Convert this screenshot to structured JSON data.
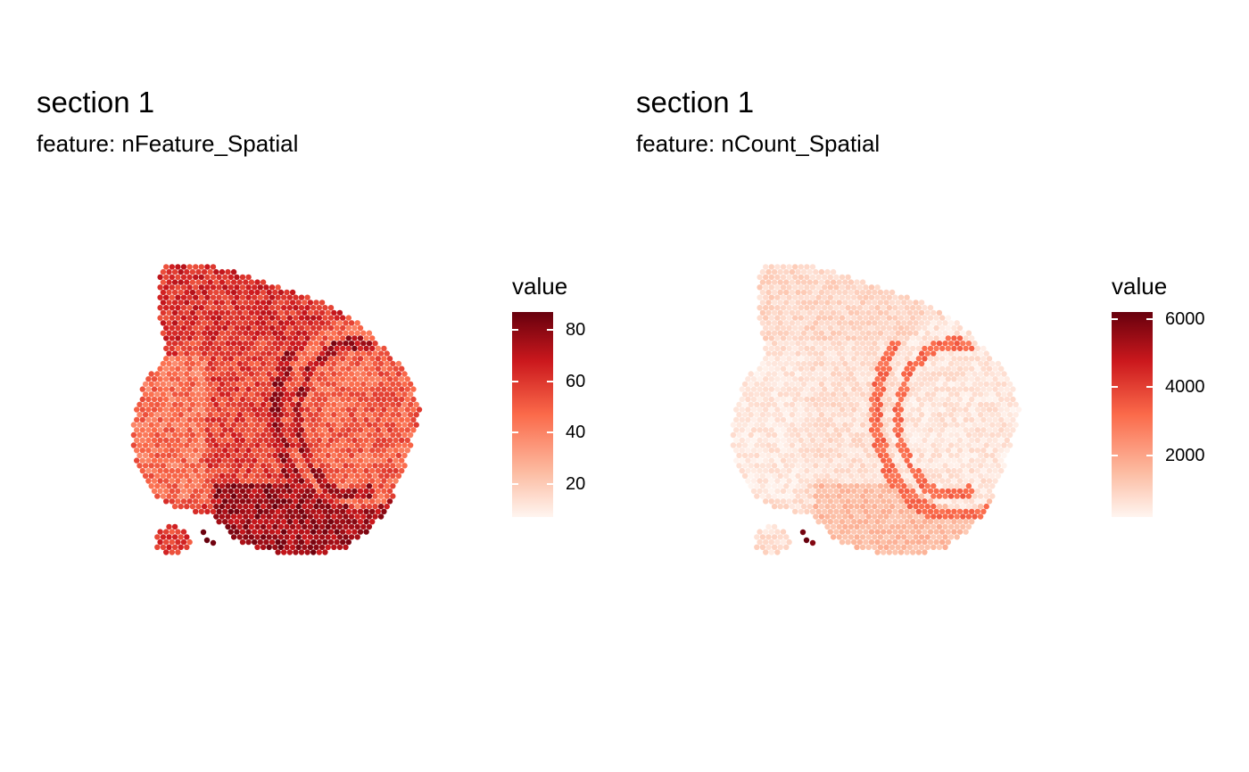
{
  "panels": [
    {
      "title": "section 1",
      "subtitle": "feature:  nFeature_Spatial"
    },
    {
      "title": "section 1",
      "subtitle": "feature:  nCount_Spatial"
    }
  ],
  "chart_data": [
    {
      "type": "scatter",
      "title": "section 1",
      "subtitle": "feature:  nFeature_Spatial",
      "feature": "nFeature_Spatial",
      "legend": {
        "title": "value",
        "placement": "right",
        "ticks": [
          20,
          40,
          60,
          80
        ],
        "range": [
          7,
          87
        ]
      },
      "palette": [
        "#fff5f0",
        "#fcbba1",
        "#fb6a4a",
        "#cb181d",
        "#67000d"
      ],
      "grid": false,
      "axes": false,
      "pattern": {
        "base_value": 58,
        "noise": 10,
        "hippocampus_band_value": 74,
        "hippocampus_inner_value": 50,
        "cortex_value": 62,
        "lateral_value": 46,
        "bottom_value": 76,
        "outlier_values": [
          87,
          85,
          86
        ]
      }
    },
    {
      "type": "scatter",
      "title": "section 1",
      "subtitle": "feature:  nCount_Spatial",
      "feature": "nCount_Spatial",
      "legend": {
        "title": "value",
        "placement": "right",
        "ticks": [
          2000,
          4000,
          6000
        ],
        "range": [
          200,
          6200
        ]
      },
      "palette": [
        "#fff5f0",
        "#fcbba1",
        "#fb6a4a",
        "#cb181d",
        "#67000d"
      ],
      "grid": false,
      "axes": false,
      "pattern": {
        "base_value": 700,
        "noise": 350,
        "hippocampus_band_value": 3200,
        "hippocampus_inner_value": 550,
        "cortex_value": 900,
        "lateral_value": 500,
        "bottom_value": 1500,
        "outlier_values": [
          6200,
          5800,
          6000
        ]
      }
    }
  ]
}
